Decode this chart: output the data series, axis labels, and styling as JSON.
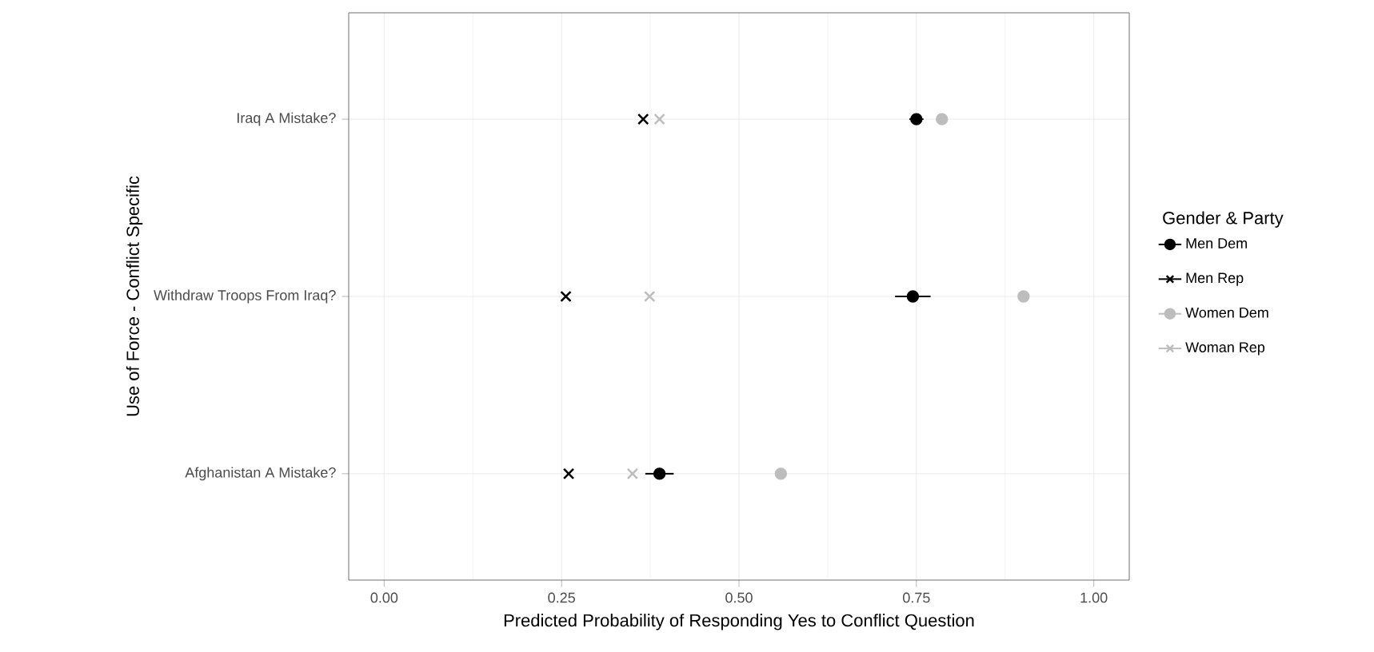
{
  "chart_data": {
    "type": "scatter",
    "orientation": "horizontal",
    "xlabel": "Predicted Probability of Responding Yes to Conflict Question",
    "ylabel": "Use of Force - Conflict Specific",
    "legend_title": "Gender & Party",
    "legend": "right",
    "grid": true,
    "categories": [
      "Iraq A Mistake?",
      "Withdraw Troops From Iraq?",
      "Afghanistan A Mistake?"
    ],
    "xlim": [
      -0.05,
      1.05
    ],
    "xticks": [
      {
        "value": 0,
        "label": "0.00"
      },
      {
        "value": 0.25,
        "label": "0.25"
      },
      {
        "value": 0.5,
        "label": "0.50"
      },
      {
        "value": 0.75,
        "label": "0.75"
      },
      {
        "value": 1,
        "label": "1.00"
      }
    ],
    "series": [
      {
        "name": "Men Dem",
        "color": "#000000",
        "marker": "circle",
        "values": [
          0.75,
          0.745,
          0.388
        ],
        "errors": [
          0.01,
          0.025,
          0.02
        ]
      },
      {
        "name": "Men Rep",
        "color": "#000000",
        "marker": "cross",
        "values": [
          0.365,
          0.256,
          0.26
        ]
      },
      {
        "name": "Women Dem",
        "color": "#bdbdbd",
        "marker": "circle",
        "values": [
          0.786,
          0.901,
          0.559
        ]
      },
      {
        "name": "Woman Rep",
        "color": "#bdbdbd",
        "marker": "cross",
        "values": [
          0.388,
          0.374,
          0.35
        ]
      }
    ]
  }
}
